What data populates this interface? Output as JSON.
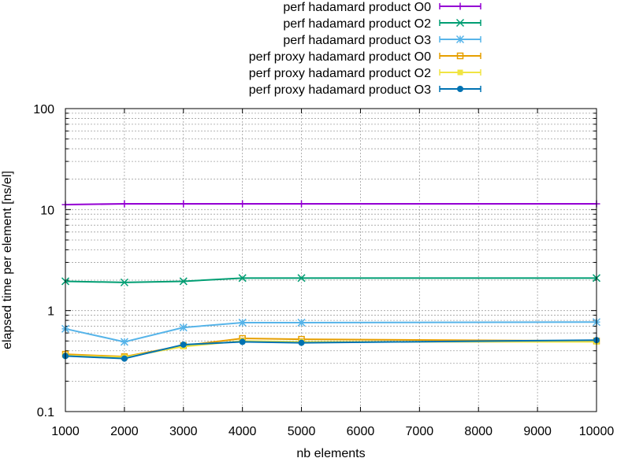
{
  "chart_data": {
    "type": "line",
    "title": "",
    "xlabel": "nb elements",
    "ylabel": "elapsed time per element [ns/el]",
    "xlim": [
      1000,
      10000
    ],
    "ylim": [
      0.1,
      100
    ],
    "yscale": "log",
    "grid": true,
    "legend_position": "top-right",
    "x_ticks": [
      "1000",
      "2000",
      "3000",
      "4000",
      "5000",
      "6000",
      "7000",
      "8000",
      "9000",
      "10000"
    ],
    "y_ticks": [
      "0.1",
      "1",
      "10",
      "100"
    ],
    "series": [
      {
        "name": "perf hadamard product O0",
        "color": "#9400d3",
        "marker": "plus",
        "x": [
          1000,
          2000,
          3000,
          4000,
          5000,
          10000
        ],
        "y": [
          11.2,
          11.4,
          11.4,
          11.4,
          11.4,
          11.4
        ]
      },
      {
        "name": "perf hadamard product O2",
        "color": "#009e73",
        "marker": "cross",
        "x": [
          1000,
          2000,
          3000,
          4000,
          5000,
          10000
        ],
        "y": [
          1.95,
          1.9,
          1.95,
          2.1,
          2.1,
          2.1
        ]
      },
      {
        "name": "perf hadamard product O3",
        "color": "#56b4e9",
        "marker": "star",
        "x": [
          1000,
          2000,
          3000,
          4000,
          5000,
          10000
        ],
        "y": [
          0.66,
          0.49,
          0.68,
          0.76,
          0.76,
          0.77
        ]
      },
      {
        "name": "perf proxy hadamard product O0",
        "color": "#e69f00",
        "marker": "square",
        "x": [
          1000,
          2000,
          3000,
          4000,
          5000,
          10000
        ],
        "y": [
          0.37,
          0.35,
          0.45,
          0.53,
          0.52,
          0.5
        ]
      },
      {
        "name": "perf proxy hadamard product O2",
        "color": "#f0e442",
        "marker": "filled-square",
        "x": [
          1000,
          2000,
          3000,
          4000,
          5000,
          10000
        ],
        "y": [
          0.36,
          0.345,
          0.44,
          0.5,
          0.49,
          0.49
        ]
      },
      {
        "name": "perf proxy hadamard product O3",
        "color": "#0072b2",
        "marker": "filled-circle",
        "x": [
          1000,
          2000,
          3000,
          4000,
          5000,
          10000
        ],
        "y": [
          0.355,
          0.335,
          0.46,
          0.49,
          0.48,
          0.51
        ]
      }
    ]
  }
}
